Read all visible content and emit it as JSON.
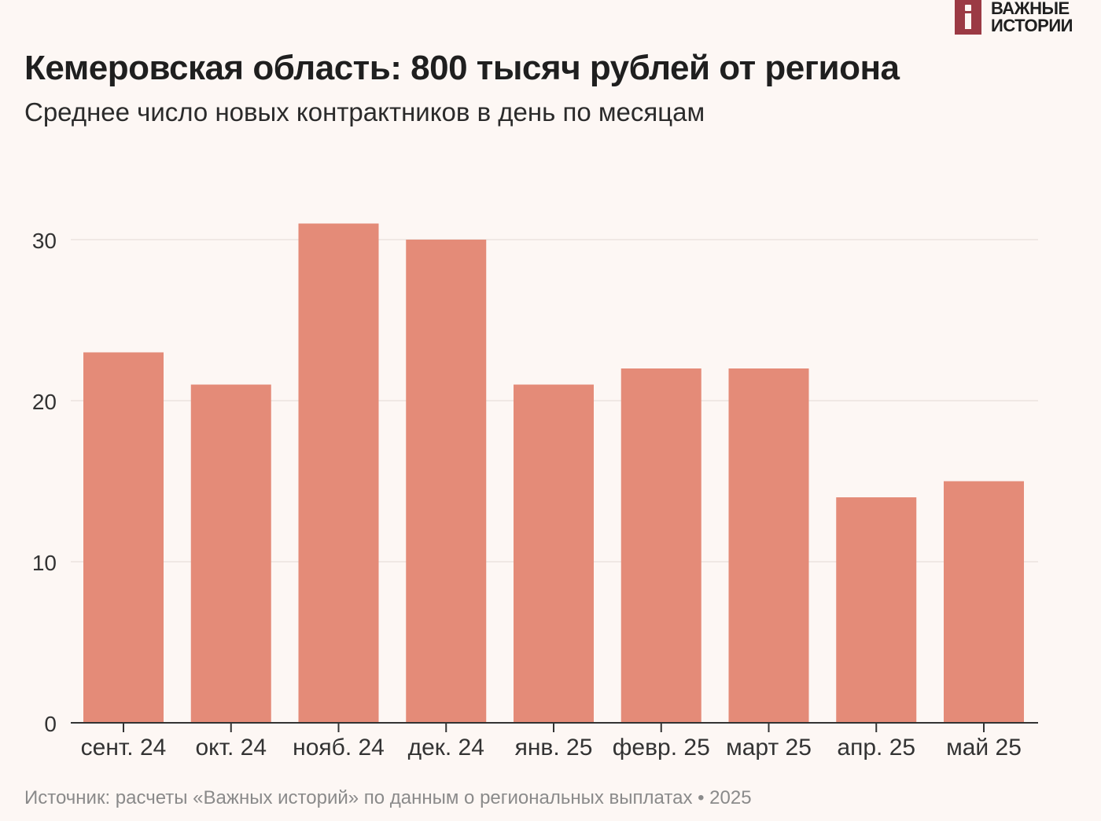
{
  "logo": {
    "line1": "ВАЖНЫЕ",
    "line2": "ИСТОРИИ"
  },
  "colors": {
    "bar": "#e48b78",
    "background": "#fdf7f4",
    "grid": "#ece3df",
    "axis": "#333333",
    "logo": "#9b3a44"
  },
  "chart_data": {
    "type": "bar",
    "title": "Кемеровская область: 800 тысяч рублей от региона",
    "subtitle": "Среднее число новых контрактников в день по месяцам",
    "categories": [
      "сент. 24",
      "окт. 24",
      "нояб. 24",
      "дек. 24",
      "янв. 25",
      "февр. 25",
      "март 25",
      "апр. 25",
      "май 25"
    ],
    "values": [
      23,
      21,
      31,
      30,
      21,
      22,
      22,
      14,
      15
    ],
    "ylim": [
      0,
      30
    ],
    "yticks": [
      0,
      10,
      20,
      30
    ],
    "xlabel": "",
    "ylabel": "",
    "grid": true
  },
  "source": "Источник: расчеты «Важных историй» по данным о региональных выплатах • 2025"
}
